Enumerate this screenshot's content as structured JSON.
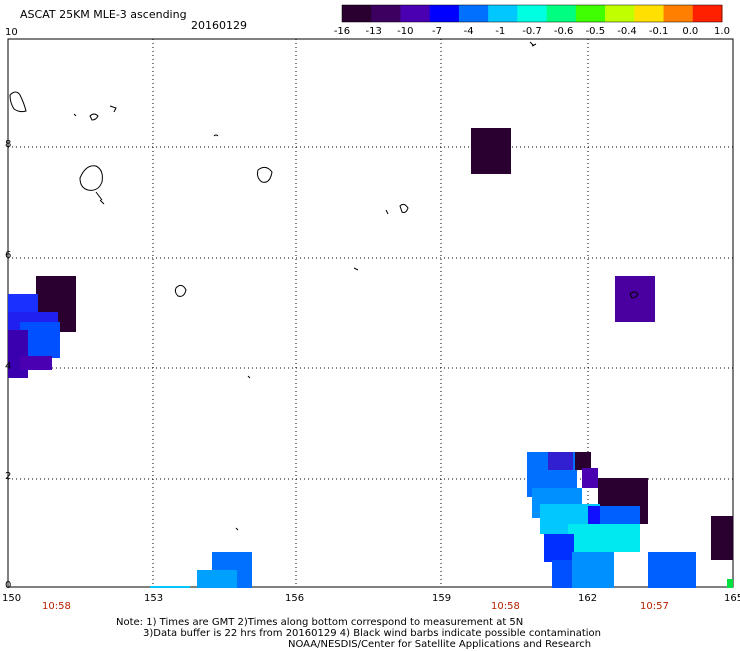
{
  "header": {
    "title": "ASCAT 25KM MLE-3 ascending",
    "date": "20160129"
  },
  "colorbar": {
    "labels": [
      "-16",
      "-13",
      "-10",
      "-7",
      "-4",
      "-1",
      "-0.7",
      "-0.6",
      "-0.5",
      "-0.4",
      "-0.1",
      "0.0",
      "1.0"
    ],
    "colors": [
      "#2a0030",
      "#3c0060",
      "#4a00b0",
      "#0000ff",
      "#0070ff",
      "#00c8ff",
      "#00ffe0",
      "#00ff80",
      "#40ff00",
      "#c0ff00",
      "#ffe000",
      "#ff8000",
      "#ff2000"
    ]
  },
  "axes": {
    "y_ticks": [
      "10",
      "8",
      "6",
      "4",
      "2",
      "0"
    ],
    "x_ticks": [
      "150",
      "153",
      "156",
      "159",
      "162",
      "165"
    ]
  },
  "times": [
    "10:58",
    "10:58",
    "10:57"
  ],
  "notes": {
    "line1": "Note: 1) Times are GMT 2)Times along bottom correspond to measurement at 5N",
    "line2": "3)Data buffer is 22 hrs from 20160129 4) Black wind barbs indicate possible contamination",
    "line3": "NOAA/NESDIS/Center for Satellite Applications and Research"
  }
}
